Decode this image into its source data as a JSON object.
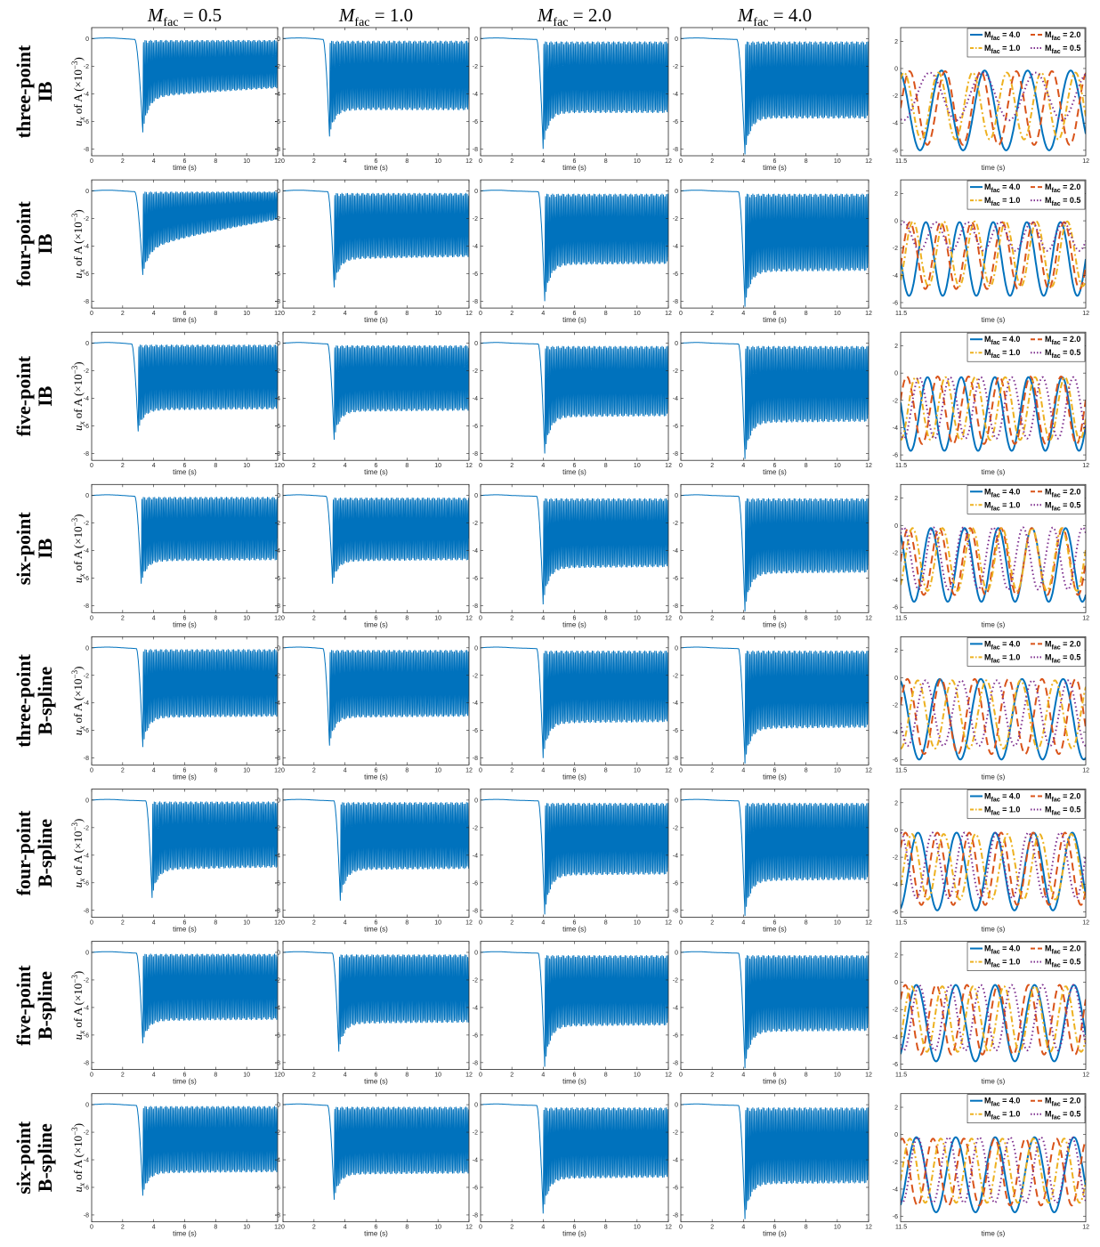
{
  "figure": {
    "column_titles": [
      {
        "main": "M",
        "sub": "fac",
        "value": " = 0.5"
      },
      {
        "main": "M",
        "sub": "fac",
        "value": " = 1.0"
      },
      {
        "main": "M",
        "sub": "fac",
        "value": " = 2.0"
      },
      {
        "main": "M",
        "sub": "fac",
        "value": " = 4.0"
      }
    ],
    "row_labels": [
      [
        "three-point",
        "IB"
      ],
      [
        "four-point",
        "IB"
      ],
      [
        "five-point",
        "IB"
      ],
      [
        "six-point",
        "IB"
      ],
      [
        "three-point",
        "B-spline"
      ],
      [
        "four-point",
        "B-spline"
      ],
      [
        "five-point",
        "B-spline"
      ],
      [
        "six-point",
        "B-spline"
      ]
    ],
    "ylabel": {
      "var": "u",
      "sub": "x",
      "text": " of A (×10",
      "exp": "−3",
      "close": ")"
    },
    "xlabel": "time (s)"
  },
  "chart_data": {
    "type": "line",
    "layout": "8 rows x 5 columns of subplots",
    "time_panels": {
      "xlim": [
        0,
        12
      ],
      "ylim": [
        -8.5,
        0.8
      ],
      "xticks": [
        0,
        2,
        4,
        6,
        8,
        10,
        12
      ],
      "yticks": [
        0,
        -2,
        -4,
        -6,
        -8
      ],
      "color": "#0072BD",
      "description": "displacement u_x of point A vs time; starts at 0, drops sharply after release, then oscillates between an upper and lower envelope",
      "panels": [
        [
          {
            "onset": 2.8,
            "dip_time": 3.3,
            "dip": -6.8,
            "upper": -0.1,
            "lower_start": -4.4,
            "lower_end": -3.6
          },
          {
            "onset": 2.6,
            "dip_time": 3.0,
            "dip": -7.1,
            "upper": -0.15,
            "lower_start": -5.2,
            "lower_end": -5.2
          },
          {
            "onset": 3.6,
            "dip_time": 4.0,
            "dip": -8.0,
            "upper": -0.2,
            "lower_start": -5.4,
            "lower_end": -5.4
          },
          {
            "onset": 3.6,
            "dip_time": 4.1,
            "dip": -8.4,
            "upper": -0.2,
            "lower_start": -5.8,
            "lower_end": -5.8
          }
        ],
        [
          {
            "onset": 2.8,
            "dip_time": 3.3,
            "dip": -6.1,
            "upper": -0.05,
            "lower_start": -4.5,
            "lower_end": -2.1
          },
          {
            "onset": 2.9,
            "dip_time": 3.3,
            "dip": -7.0,
            "upper": -0.15,
            "lower_start": -5.0,
            "lower_end": -4.8
          },
          {
            "onset": 3.7,
            "dip_time": 4.1,
            "dip": -8.0,
            "upper": -0.2,
            "lower_start": -5.4,
            "lower_end": -5.3
          },
          {
            "onset": 3.7,
            "dip_time": 4.1,
            "dip": -8.4,
            "upper": -0.2,
            "lower_start": -5.9,
            "lower_end": -5.8
          }
        ],
        [
          {
            "onset": 2.6,
            "dip_time": 3.0,
            "dip": -6.4,
            "upper": -0.1,
            "lower_start": -4.9,
            "lower_end": -4.8
          },
          {
            "onset": 2.9,
            "dip_time": 3.3,
            "dip": -7.0,
            "upper": -0.15,
            "lower_start": -5.0,
            "lower_end": -4.9
          },
          {
            "onset": 3.7,
            "dip_time": 4.1,
            "dip": -8.0,
            "upper": -0.2,
            "lower_start": -5.4,
            "lower_end": -5.3
          },
          {
            "onset": 3.7,
            "dip_time": 4.1,
            "dip": -8.4,
            "upper": -0.2,
            "lower_start": -5.8,
            "lower_end": -5.7
          }
        ],
        [
          {
            "onset": 2.8,
            "dip_time": 3.2,
            "dip": -6.4,
            "upper": -0.1,
            "lower_start": -4.8,
            "lower_end": -4.7
          },
          {
            "onset": 2.8,
            "dip_time": 3.2,
            "dip": -6.4,
            "upper": -0.15,
            "lower_start": -4.8,
            "lower_end": -4.7
          },
          {
            "onset": 3.6,
            "dip_time": 4.0,
            "dip": -7.9,
            "upper": -0.2,
            "lower_start": -5.3,
            "lower_end": -5.2
          },
          {
            "onset": 3.7,
            "dip_time": 4.1,
            "dip": -8.4,
            "upper": -0.2,
            "lower_start": -5.7,
            "lower_end": -5.6
          }
        ],
        [
          {
            "onset": 2.9,
            "dip_time": 3.3,
            "dip": -7.2,
            "upper": -0.1,
            "lower_start": -5.1,
            "lower_end": -5.0
          },
          {
            "onset": 2.6,
            "dip_time": 3.0,
            "dip": -7.1,
            "upper": -0.15,
            "lower_start": -5.1,
            "lower_end": -5.0
          },
          {
            "onset": 3.6,
            "dip_time": 4.0,
            "dip": -8.0,
            "upper": -0.2,
            "lower_start": -5.5,
            "lower_end": -5.4
          },
          {
            "onset": 3.7,
            "dip_time": 4.1,
            "dip": -8.4,
            "upper": -0.2,
            "lower_start": -5.9,
            "lower_end": -5.8
          }
        ],
        [
          {
            "onset": 3.5,
            "dip_time": 3.9,
            "dip": -7.1,
            "upper": -0.1,
            "lower_start": -5.1,
            "lower_end": -4.9
          },
          {
            "onset": 3.3,
            "dip_time": 3.7,
            "dip": -7.3,
            "upper": -0.15,
            "lower_start": -5.1,
            "lower_end": -5.0
          },
          {
            "onset": 3.7,
            "dip_time": 4.1,
            "dip": -8.3,
            "upper": -0.2,
            "lower_start": -5.5,
            "lower_end": -5.4
          },
          {
            "onset": 3.7,
            "dip_time": 4.1,
            "dip": -8.4,
            "upper": -0.2,
            "lower_start": -5.9,
            "lower_end": -5.8
          }
        ],
        [
          {
            "onset": 2.9,
            "dip_time": 3.3,
            "dip": -6.6,
            "upper": -0.1,
            "lower_start": -5.0,
            "lower_end": -4.9
          },
          {
            "onset": 3.2,
            "dip_time": 3.6,
            "dip": -7.2,
            "upper": -0.15,
            "lower_start": -5.2,
            "lower_end": -5.1
          },
          {
            "onset": 3.7,
            "dip_time": 4.1,
            "dip": -8.3,
            "upper": -0.2,
            "lower_start": -5.4,
            "lower_end": -5.3
          },
          {
            "onset": 3.7,
            "dip_time": 4.1,
            "dip": -8.4,
            "upper": -0.2,
            "lower_start": -5.8,
            "lower_end": -5.7
          }
        ],
        [
          {
            "onset": 2.9,
            "dip_time": 3.3,
            "dip": -6.6,
            "upper": -0.1,
            "lower_start": -5.0,
            "lower_end": -4.9
          },
          {
            "onset": 2.9,
            "dip_time": 3.3,
            "dip": -6.9,
            "upper": -0.15,
            "lower_start": -5.1,
            "lower_end": -5.0
          },
          {
            "onset": 3.6,
            "dip_time": 4.0,
            "dip": -7.9,
            "upper": -0.2,
            "lower_start": -5.4,
            "lower_end": -5.3
          },
          {
            "onset": 3.7,
            "dip_time": 4.1,
            "dip": -8.3,
            "upper": -0.2,
            "lower_start": -5.8,
            "lower_end": -5.7
          }
        ]
      ]
    },
    "zoom_panels": {
      "xlim": [
        11.5,
        12
      ],
      "ylim": [
        -6.4,
        3.0
      ],
      "xticks": [
        11.5,
        12
      ],
      "yticks": [
        2,
        0,
        -2,
        -4,
        -6
      ],
      "legend": {
        "placement": "top-right",
        "entries": [
          {
            "main": "M",
            "sub": "fac",
            "value": " = 4.0"
          },
          {
            "main": "M",
            "sub": "fac",
            "value": " = 2.0"
          },
          {
            "main": "M",
            "sub": "fac",
            "value": " = 1.0"
          },
          {
            "main": "M",
            "sub": "fac",
            "value": " = 0.5"
          }
        ]
      },
      "series_styles": [
        {
          "color": "#0072BD",
          "dash": "solid",
          "width": 2
        },
        {
          "color": "#D95319",
          "dash": "long-dash",
          "width": 2
        },
        {
          "color": "#EDB120",
          "dash": "dash-dot",
          "width": 2
        },
        {
          "color": "#7E2F8E",
          "dash": "dotted",
          "width": 2
        }
      ],
      "description": "zoom of last 0.5 s: sinusoidal oscillations for the four M_fac values (series order: 4.0, 2.0, 1.0, 0.5)",
      "panels": [
        [
          {
            "cycles": 4.3,
            "phase": 0.95,
            "max": -0.15,
            "min": -6.0
          },
          {
            "cycles": 5.2,
            "phase": 0.25,
            "max": -0.2,
            "min": -5.6
          },
          {
            "cycles": 5.4,
            "phase": 0.1,
            "max": -0.3,
            "min": -5.2
          },
          {
            "cycles": 3.5,
            "phase": 0.55,
            "max": -0.3,
            "min": -3.8
          }
        ],
        [
          {
            "cycles": 5.5,
            "phase": 0.75,
            "max": -0.1,
            "min": -5.5
          },
          {
            "cycles": 6.0,
            "phase": 0.3,
            "max": -0.1,
            "min": -5.0
          },
          {
            "cycles": 6.0,
            "phase": 0.4,
            "max": -0.05,
            "min": -4.8
          },
          {
            "cycles": 5.8,
            "phase": 0.1,
            "max": -0.1,
            "min": -2.2
          }
        ],
        [
          {
            "cycles": 5.5,
            "phase": 0.8,
            "max": -0.3,
            "min": -5.7
          },
          {
            "cycles": 6.0,
            "phase": 0.2,
            "max": -0.25,
            "min": -5.2
          },
          {
            "cycles": 6.2,
            "phase": 0.5,
            "max": -0.3,
            "min": -4.9
          },
          {
            "cycles": 6.0,
            "phase": 0.6,
            "max": -0.3,
            "min": -4.8
          }
        ],
        [
          {
            "cycles": 5.5,
            "phase": 0.9,
            "max": -0.2,
            "min": -5.6
          },
          {
            "cycles": 6.0,
            "phase": 0.25,
            "max": -0.2,
            "min": -5.1
          },
          {
            "cycles": 6.2,
            "phase": 0.4,
            "max": -0.2,
            "min": -4.8
          },
          {
            "cycles": 6.2,
            "phase": 0.1,
            "max": -0.15,
            "min": -4.7
          }
        ],
        [
          {
            "cycles": 4.5,
            "phase": 0.95,
            "max": -0.1,
            "min": -6.0
          },
          {
            "cycles": 5.5,
            "phase": 0.2,
            "max": -0.1,
            "min": -5.6
          },
          {
            "cycles": 5.4,
            "phase": 0.5,
            "max": -0.2,
            "min": -5.2
          },
          {
            "cycles": 5.2,
            "phase": 0.7,
            "max": -0.2,
            "min": -5.0
          }
        ],
        [
          {
            "cycles": 4.8,
            "phase": 0.45,
            "max": -0.2,
            "min": -5.9
          },
          {
            "cycles": 5.8,
            "phase": 0.15,
            "max": -0.2,
            "min": -5.5
          },
          {
            "cycles": 5.8,
            "phase": 0.35,
            "max": -0.3,
            "min": -5.1
          },
          {
            "cycles": 5.8,
            "phase": 0.0,
            "max": -0.2,
            "min": -5.0
          }
        ],
        [
          {
            "cycles": 4.7,
            "phase": 0.4,
            "max": -0.2,
            "min": -5.8
          },
          {
            "cycles": 6.0,
            "phase": 0.15,
            "max": -0.2,
            "min": -5.3
          },
          {
            "cycles": 6.0,
            "phase": 0.35,
            "max": -0.3,
            "min": -5.1
          },
          {
            "cycles": 6.0,
            "phase": 0.6,
            "max": -0.2,
            "min": -5.0
          }
        ],
        [
          {
            "cycles": 4.7,
            "phase": 0.4,
            "max": -0.2,
            "min": -5.7
          },
          {
            "cycles": 6.0,
            "phase": 0.05,
            "max": -0.3,
            "min": -5.2
          },
          {
            "cycles": 6.0,
            "phase": 0.3,
            "max": -0.3,
            "min": -5.0
          },
          {
            "cycles": 6.0,
            "phase": 0.55,
            "max": -0.2,
            "min": -5.0
          }
        ]
      ]
    }
  }
}
